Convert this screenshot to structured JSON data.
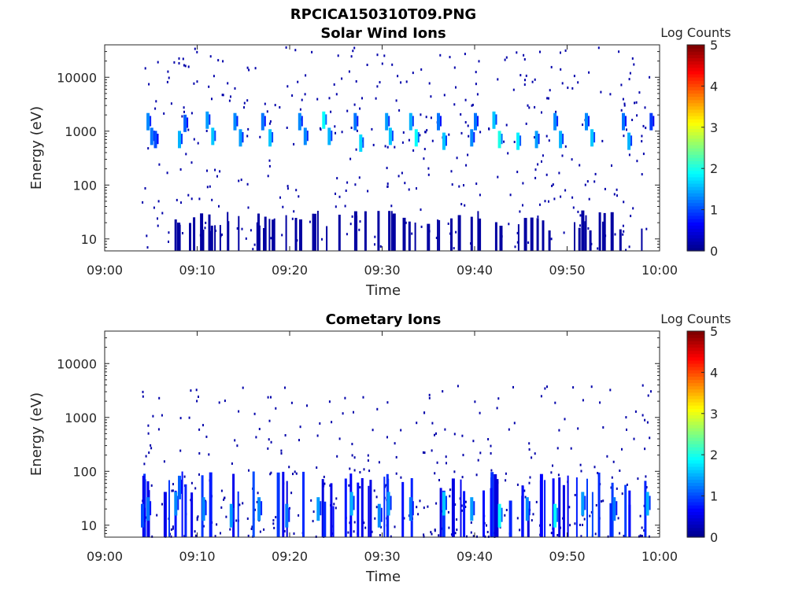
{
  "figure_title": "RPCICA150310T09.PNG",
  "colors": {
    "jet": [
      "#00008f",
      "#0000ff",
      "#0080ff",
      "#00ffff",
      "#80ff80",
      "#ffff00",
      "#ff8000",
      "#ff0000",
      "#800000"
    ],
    "axis": "#262626",
    "background": "#ffffff"
  },
  "chart_data": [
    {
      "type": "heatmap",
      "title": "Solar Wind Ions",
      "xlabel": "Time",
      "ylabel": "Energy (eV)",
      "y_scale": "log",
      "xlim": [
        "09:00",
        "10:00"
      ],
      "ylim": [
        6,
        40000
      ],
      "x_ticks": [
        "09:00",
        "09:10",
        "09:20",
        "09:30",
        "09:40",
        "09:50",
        "10:00"
      ],
      "y_ticks": [
        10,
        100,
        1000,
        10000
      ],
      "y_tick_labels": [
        "10",
        "100",
        "1000",
        "10000"
      ],
      "colorbar": {
        "label": "Log Counts",
        "range": [
          0,
          5
        ],
        "ticks": [
          "0",
          "1",
          "2",
          "3",
          "4",
          "5"
        ]
      },
      "time_range_with_data": [
        "09:04",
        "09:59"
      ],
      "cells": [
        {
          "t": 4.6,
          "e": 1500,
          "v": 1.3
        },
        {
          "t": 5.0,
          "e": 800,
          "v": 1.2
        },
        {
          "t": 5.4,
          "e": 700,
          "v": 1.0
        },
        {
          "t": 8.0,
          "e": 700,
          "v": 1.5
        },
        {
          "t": 8.6,
          "e": 1400,
          "v": 1.1
        },
        {
          "t": 11.0,
          "e": 1600,
          "v": 1.4
        },
        {
          "t": 11.6,
          "e": 800,
          "v": 1.6
        },
        {
          "t": 14.0,
          "e": 1500,
          "v": 1.3
        },
        {
          "t": 14.6,
          "e": 750,
          "v": 1.4
        },
        {
          "t": 17.0,
          "e": 1500,
          "v": 1.2
        },
        {
          "t": 17.8,
          "e": 750,
          "v": 1.6
        },
        {
          "t": 21.0,
          "e": 1500,
          "v": 1.3
        },
        {
          "t": 21.6,
          "e": 800,
          "v": 1.3
        },
        {
          "t": 23.6,
          "e": 1600,
          "v": 1.9
        },
        {
          "t": 24.2,
          "e": 800,
          "v": 1.5
        },
        {
          "t": 27.0,
          "e": 1500,
          "v": 1.2
        },
        {
          "t": 27.6,
          "e": 600,
          "v": 1.7
        },
        {
          "t": 30.4,
          "e": 1500,
          "v": 1.4
        },
        {
          "t": 30.8,
          "e": 800,
          "v": 1.6
        },
        {
          "t": 33.0,
          "e": 1500,
          "v": 1.5
        },
        {
          "t": 33.6,
          "e": 750,
          "v": 1.9
        },
        {
          "t": 36.0,
          "e": 1500,
          "v": 1.2
        },
        {
          "t": 36.6,
          "e": 650,
          "v": 1.6
        },
        {
          "t": 39.6,
          "e": 750,
          "v": 1.3
        },
        {
          "t": 40.0,
          "e": 1500,
          "v": 1.2
        },
        {
          "t": 42.0,
          "e": 1600,
          "v": 1.6
        },
        {
          "t": 42.6,
          "e": 700,
          "v": 2.0
        },
        {
          "t": 44.6,
          "e": 650,
          "v": 1.8
        },
        {
          "t": 46.6,
          "e": 700,
          "v": 1.4
        },
        {
          "t": 48.6,
          "e": 1500,
          "v": 1.3
        },
        {
          "t": 49.2,
          "e": 700,
          "v": 1.5
        },
        {
          "t": 52.0,
          "e": 1500,
          "v": 1.3
        },
        {
          "t": 52.6,
          "e": 750,
          "v": 1.6
        },
        {
          "t": 56.0,
          "e": 1500,
          "v": 1.2
        },
        {
          "t": 56.6,
          "e": 650,
          "v": 1.5
        },
        {
          "t": 59.0,
          "e": 1500,
          "v": 0.9
        }
      ]
    },
    {
      "type": "heatmap",
      "title": "Cometary Ions",
      "xlabel": "Time",
      "ylabel": "Energy (eV)",
      "y_scale": "log",
      "xlim": [
        "09:00",
        "10:00"
      ],
      "ylim": [
        6,
        40000
      ],
      "x_ticks": [
        "09:00",
        "09:10",
        "09:20",
        "09:30",
        "09:40",
        "09:50",
        "10:00"
      ],
      "y_ticks": [
        10,
        100,
        1000,
        10000
      ],
      "y_tick_labels": [
        "10",
        "100",
        "1000",
        "10000"
      ],
      "colorbar": {
        "label": "Log Counts",
        "range": [
          0,
          5
        ],
        "ticks": [
          "0",
          "1",
          "2",
          "3",
          "4",
          "5"
        ]
      },
      "time_range_with_data": [
        "09:04",
        "09:59"
      ],
      "cells": [
        {
          "t": 4.0,
          "e": 15,
          "v": 1.0
        },
        {
          "t": 4.6,
          "e": 20,
          "v": 1.2
        },
        {
          "t": 7.6,
          "e": 25,
          "v": 1.3
        },
        {
          "t": 8.0,
          "e": 50,
          "v": 1.1
        },
        {
          "t": 10.6,
          "e": 20,
          "v": 1.3
        },
        {
          "t": 13.6,
          "e": 15,
          "v": 1.4
        },
        {
          "t": 16.6,
          "e": 20,
          "v": 1.3
        },
        {
          "t": 19.6,
          "e": 15,
          "v": 1.2
        },
        {
          "t": 23.0,
          "e": 20,
          "v": 1.4
        },
        {
          "t": 26.6,
          "e": 25,
          "v": 1.5
        },
        {
          "t": 29.6,
          "e": 15,
          "v": 1.3
        },
        {
          "t": 30.6,
          "e": 25,
          "v": 1.4
        },
        {
          "t": 33.0,
          "e": 20,
          "v": 1.2
        },
        {
          "t": 36.6,
          "e": 25,
          "v": 1.6
        },
        {
          "t": 39.6,
          "e": 20,
          "v": 1.4
        },
        {
          "t": 42.6,
          "e": 15,
          "v": 1.9
        },
        {
          "t": 45.6,
          "e": 20,
          "v": 1.3
        },
        {
          "t": 48.6,
          "e": 15,
          "v": 1.9
        },
        {
          "t": 51.6,
          "e": 25,
          "v": 1.4
        },
        {
          "t": 55.0,
          "e": 20,
          "v": 1.2
        },
        {
          "t": 58.6,
          "e": 25,
          "v": 1.5
        }
      ]
    }
  ]
}
